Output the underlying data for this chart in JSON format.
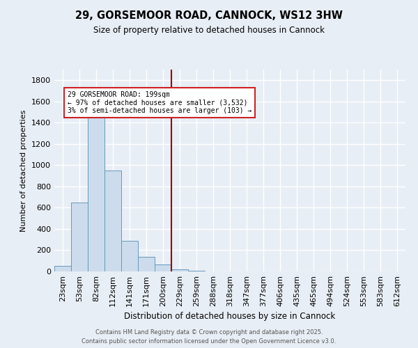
{
  "title": "29, GORSEMOOR ROAD, CANNOCK, WS12 3HW",
  "subtitle": "Size of property relative to detached houses in Cannock",
  "xlabel": "Distribution of detached houses by size in Cannock",
  "ylabel": "Number of detached properties",
  "bar_labels": [
    "23sqm",
    "53sqm",
    "82sqm",
    "112sqm",
    "141sqm",
    "171sqm",
    "200sqm",
    "229sqm",
    "259sqm",
    "288sqm",
    "318sqm",
    "347sqm",
    "377sqm",
    "406sqm",
    "435sqm",
    "465sqm",
    "494sqm",
    "524sqm",
    "553sqm",
    "583sqm",
    "612sqm"
  ],
  "bar_values": [
    50,
    650,
    1500,
    950,
    290,
    140,
    65,
    20,
    8,
    3,
    2,
    1,
    1,
    1,
    0,
    0,
    0,
    0,
    0,
    0,
    0
  ],
  "bar_color": "#ccdcec",
  "bar_edge_color": "#6699bb",
  "ylim": [
    0,
    1900
  ],
  "yticks": [
    0,
    200,
    400,
    600,
    800,
    1000,
    1200,
    1400,
    1600,
    1800
  ],
  "vline_x_index": 6,
  "vline_color": "#990000",
  "annotation_text": "29 GORSEMOOR ROAD: 199sqm\n← 97% of detached houses are smaller (3,532)\n3% of semi-detached houses are larger (103) →",
  "annotation_box_color": "#ffffff",
  "annotation_box_edge": "#cc2222",
  "bg_color": "#e8eef5",
  "grid_color": "#ffffff",
  "footer1": "Contains HM Land Registry data © Crown copyright and database right 2025.",
  "footer2": "Contains public sector information licensed under the Open Government Licence v3.0."
}
